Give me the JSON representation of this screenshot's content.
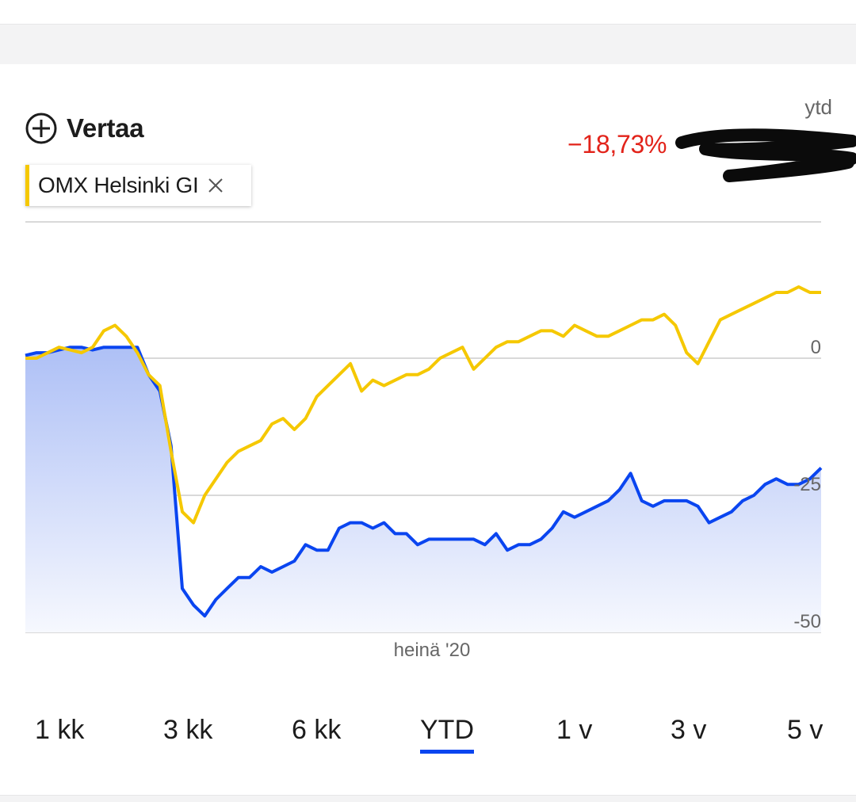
{
  "compare": {
    "label": "Vertaa",
    "icon": "plus-circle-icon"
  },
  "comparison_chip": {
    "label": "OMX Helsinki GI",
    "color": "#f5c800",
    "close_icon": "close-icon"
  },
  "summary": {
    "period": "ytd",
    "change": "−18,73%",
    "change_color": "#e2231a"
  },
  "ranges": [
    {
      "label": "1 kk",
      "active": false
    },
    {
      "label": "3 kk",
      "active": false
    },
    {
      "label": "6 kk",
      "active": false
    },
    {
      "label": "YTD",
      "active": true
    },
    {
      "label": "1 v",
      "active": false
    },
    {
      "label": "3 v",
      "active": false
    },
    {
      "label": "5 v",
      "active": false
    }
  ],
  "chart_data": {
    "type": "line",
    "title": "",
    "xlabel": "",
    "ylabel": "",
    "x_tick_labels": [
      "heinä '20"
    ],
    "y_ticks": [
      0,
      -25,
      -50
    ],
    "ylim": [
      -50,
      25
    ],
    "grid": true,
    "series": [
      {
        "color": "#0a45f0",
        "fill": true,
        "values": [
          0.5,
          1,
          1,
          1.5,
          2,
          2,
          1.5,
          2,
          2,
          2,
          2,
          -3,
          -6,
          -16,
          -42,
          -45,
          -47,
          -44,
          -42,
          -40,
          -40,
          -38,
          -39,
          -38,
          -37,
          -34,
          -35,
          -35,
          -31,
          -30,
          -30,
          -31,
          -30,
          -32,
          -32,
          -34,
          -33,
          -33,
          -33,
          -33,
          -33,
          -34,
          -32,
          -35,
          -34,
          -34,
          -33,
          -31,
          -28,
          -29,
          -28,
          -27,
          -26,
          -24,
          -21,
          -26,
          -27,
          -26,
          -26,
          -26,
          -27,
          -30,
          -29,
          -28,
          -26,
          -25,
          -23,
          -22,
          -23,
          -23,
          -22,
          -20
        ]
      },
      {
        "color": "#f5c800",
        "fill": false,
        "values": [
          0,
          0,
          1,
          2,
          1.5,
          1,
          2,
          5,
          6,
          4,
          1,
          -3,
          -5,
          -17,
          -28,
          -30,
          -25,
          -22,
          -19,
          -17,
          -16,
          -15,
          -12,
          -11,
          -13,
          -11,
          -7,
          -5,
          -3,
          -1,
          -6,
          -4,
          -5,
          -4,
          -3,
          -3,
          -2,
          0,
          1,
          2,
          -2,
          0,
          2,
          3,
          3,
          4,
          5,
          5,
          4,
          6,
          5,
          4,
          4,
          5,
          6,
          7,
          7,
          8,
          6,
          1,
          -1,
          3,
          7,
          8,
          9,
          10,
          11,
          12,
          12,
          13,
          12,
          12
        ]
      }
    ]
  }
}
